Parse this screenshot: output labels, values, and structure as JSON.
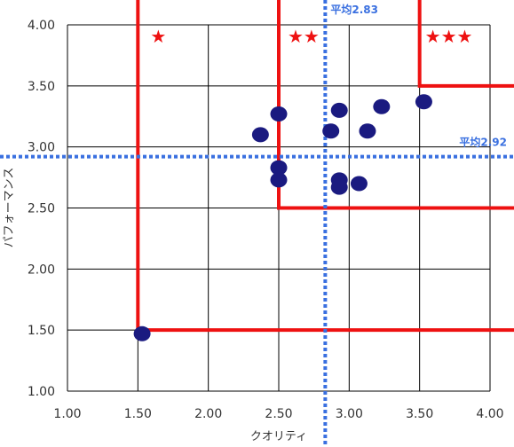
{
  "chart_data": {
    "type": "scatter",
    "xlabel": "クオリティ",
    "ylabel": "パフォーマンス",
    "xlim": [
      1.0,
      4.0
    ],
    "ylim": [
      1.0,
      4.0
    ],
    "x_ticks": [
      "1.00",
      "1.50",
      "2.00",
      "2.50",
      "3.00",
      "3.50",
      "4.00"
    ],
    "y_ticks": [
      "1.00",
      "1.50",
      "2.00",
      "2.50",
      "3.00",
      "3.50",
      "4.00"
    ],
    "grid": true,
    "points": [
      {
        "x": 1.53,
        "y": 1.47
      },
      {
        "x": 2.37,
        "y": 3.1
      },
      {
        "x": 2.5,
        "y": 3.27
      },
      {
        "x": 2.5,
        "y": 2.83
      },
      {
        "x": 2.5,
        "y": 2.73
      },
      {
        "x": 2.87,
        "y": 3.13
      },
      {
        "x": 2.93,
        "y": 3.3
      },
      {
        "x": 2.93,
        "y": 2.73
      },
      {
        "x": 2.93,
        "y": 2.67
      },
      {
        "x": 3.07,
        "y": 2.7
      },
      {
        "x": 3.13,
        "y": 3.13
      },
      {
        "x": 3.23,
        "y": 3.33
      },
      {
        "x": 3.53,
        "y": 3.37
      }
    ],
    "average_x": {
      "value": 2.83,
      "label": "平均2.83"
    },
    "average_y": {
      "value": 2.92,
      "label": "平均2.92"
    },
    "zones": [
      {
        "stars": "★",
        "corner_x": 1.5,
        "corner_y": 1.5
      },
      {
        "stars": "★★",
        "corner_x": 2.5,
        "corner_y": 2.5
      },
      {
        "stars": "★★★",
        "corner_x": 3.5,
        "corner_y": 3.5
      }
    ],
    "colors": {
      "point": "#1a1a80",
      "average": "#3a70e0",
      "zone": "#ee1111",
      "grid": "#000000",
      "star": "#ee1111"
    }
  }
}
